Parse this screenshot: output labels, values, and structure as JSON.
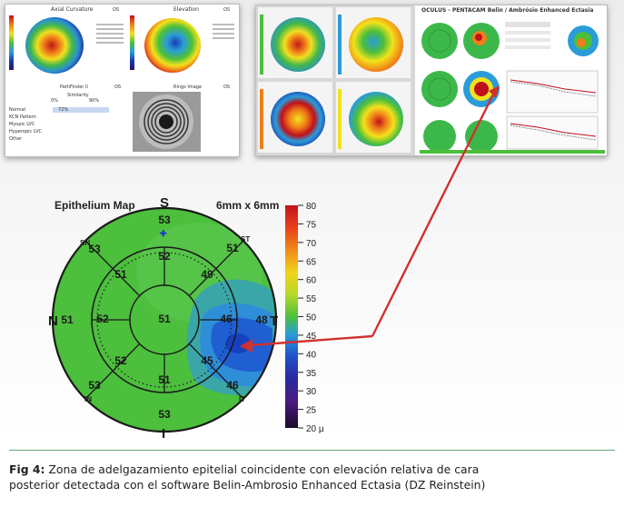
{
  "panel_left": {
    "title_axial": "Axial Curvature",
    "title_elevation": "Elevation",
    "eye_label_1": "OS",
    "eye_label_2": "OS",
    "eye_label_3": "OS",
    "eye_label_4": "OS",
    "pathfinder_title": "PathFinder II",
    "similarity_label": "Similarity",
    "similarity_min": "0%",
    "similarity_max": "90%",
    "ring_title": "Rings Image",
    "categories": [
      "Normal",
      "KCN Pattern",
      "Myopic LVC",
      "Hyperopic LVC",
      "Other"
    ],
    "normal_value": "72%"
  },
  "panel_right": {
    "oculus_title": "OCULUS - PENTACAM  Belin / Ambrósio Enhanced Ectasia"
  },
  "epithelium_map": {
    "title": "Epithelium Map",
    "size_label": "6mm x 6mm",
    "dir_S": "S",
    "dir_N": "N",
    "dir_T": "T",
    "dir_I": "I",
    "sec_SN": "SN",
    "sec_ST": "ST",
    "sec_IN": "IN",
    "sec_IT": "IT",
    "values": {
      "s_outer": "53",
      "sn_outer": "53",
      "st_outer": "51",
      "n_outer": "51",
      "t_outer": "48",
      "in_outer": "53",
      "it_outer": "46",
      "i_outer": "53",
      "s_mid": "52",
      "sn_mid": "51",
      "st_mid": "49",
      "n_mid": "52",
      "center": "51",
      "t_mid": "46",
      "in_mid": "52",
      "it_mid": "45",
      "i_mid": "51"
    },
    "scale_ticks": [
      "80",
      "75",
      "70",
      "65",
      "60",
      "55",
      "50",
      "45",
      "40",
      "35",
      "30",
      "25",
      "20 µ"
    ]
  },
  "caption": {
    "label": "Fig 4:",
    "line1": " Zona de adelgazamiento epitelial coincidente con elevación relativa de cara",
    "line2": "posterior detectada con el software Belin-Ambrosio Enhanced Ectasia (DZ Reinstein)"
  }
}
